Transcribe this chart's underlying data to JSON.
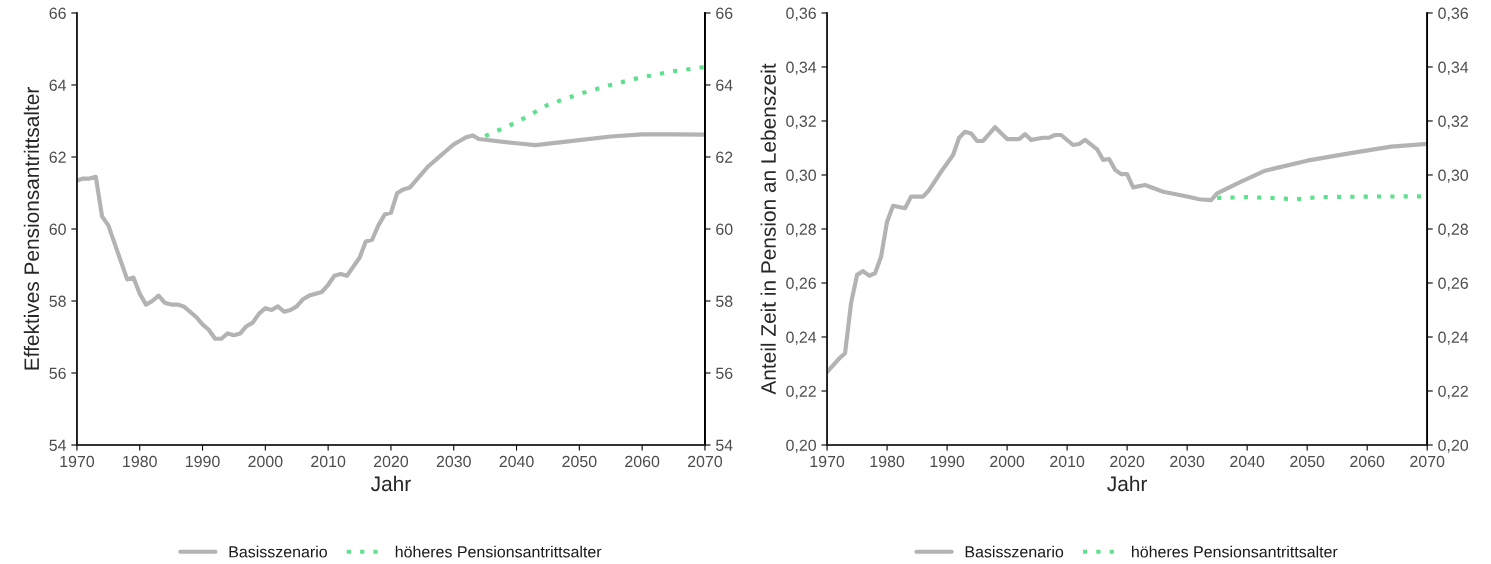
{
  "chart_data": [
    {
      "type": "line",
      "xlabel": "Jahr",
      "ylabel": "Effektives Pensionsantrittsalter",
      "xlim": [
        1970,
        2070
      ],
      "xticks": [
        1970,
        1980,
        1990,
        2000,
        2010,
        2020,
        2030,
        2040,
        2050,
        2060,
        2070
      ],
      "ylim": [
        54,
        66
      ],
      "yticks": [
        54,
        56,
        58,
        60,
        62,
        64,
        66
      ],
      "y2lim": [
        54,
        66
      ],
      "y2ticks": [
        54,
        56,
        58,
        60,
        62,
        64,
        66
      ],
      "grid": false,
      "legend": "bottom",
      "series": [
        {
          "name": "Basisszenario",
          "color": "#b3b3b3",
          "line_style": "solid",
          "x": [
            1970,
            1971,
            1972,
            1973,
            1974,
            1975,
            1976,
            1977,
            1978,
            1979,
            1980,
            1981,
            1982,
            1983,
            1984,
            1985,
            1986,
            1987,
            1988,
            1989,
            1990,
            1991,
            1992,
            1993,
            1994,
            1995,
            1996,
            1997,
            1998,
            1999,
            2000,
            2001,
            2002,
            2003,
            2004,
            2005,
            2006,
            2007,
            2008,
            2009,
            2010,
            2011,
            2012,
            2013,
            2014,
            2015,
            2016,
            2017,
            2018,
            2019,
            2020,
            2021,
            2022,
            2023,
            2024,
            2025,
            2026,
            2027,
            2028,
            2029,
            2030,
            2031,
            2032,
            2033,
            2034,
            2035,
            2040,
            2043,
            2050,
            2055,
            2060,
            2065,
            2070
          ],
          "values": [
            61.35,
            61.4,
            61.4,
            61.45,
            60.35,
            60.1,
            59.6,
            59.1,
            58.6,
            58.65,
            58.2,
            57.9,
            58.0,
            58.15,
            57.95,
            57.9,
            57.9,
            57.85,
            57.7,
            57.55,
            57.35,
            57.2,
            56.95,
            56.95,
            57.1,
            57.05,
            57.1,
            57.3,
            57.4,
            57.65,
            57.8,
            57.75,
            57.85,
            57.7,
            57.75,
            57.85,
            58.05,
            58.15,
            58.2,
            58.25,
            58.45,
            58.7,
            58.75,
            58.7,
            58.95,
            59.2,
            59.65,
            59.7,
            60.1,
            60.4,
            60.45,
            61.0,
            61.1,
            61.15,
            61.35,
            61.55,
            61.75,
            61.9,
            62.05,
            62.2,
            62.35,
            62.45,
            62.55,
            62.6,
            62.5,
            62.48,
            62.38,
            62.33,
            62.47,
            62.57,
            62.63,
            62.63,
            62.62
          ]
        },
        {
          "name": "höheres Pensionsantrittsalter",
          "color": "#5ee08e",
          "line_style": "dotted",
          "x": [
            2035,
            2040,
            2045,
            2050,
            2055,
            2060,
            2065,
            2070
          ],
          "values": [
            62.58,
            62.96,
            63.45,
            63.75,
            64.0,
            64.22,
            64.38,
            64.5
          ]
        }
      ]
    },
    {
      "type": "line",
      "xlabel": "Jahr",
      "ylabel": "Anteil Zeit in Pension an Lebenszeit",
      "xlim": [
        1970,
        2070
      ],
      "xticks": [
        1970,
        1980,
        1990,
        2000,
        2010,
        2020,
        2030,
        2040,
        2050,
        2060,
        2070
      ],
      "ylim": [
        0.2,
        0.36
      ],
      "yticks": [
        {
          "value": 0.2,
          "label": "0,20"
        },
        {
          "value": 0.22,
          "label": "0,22"
        },
        {
          "value": 0.24,
          "label": "0,24"
        },
        {
          "value": 0.26,
          "label": "0,26"
        },
        {
          "value": 0.28,
          "label": "0,28"
        },
        {
          "value": 0.3,
          "label": "0,30"
        },
        {
          "value": 0.32,
          "label": "0,32"
        },
        {
          "value": 0.34,
          "label": "0,34"
        },
        {
          "value": 0.36,
          "label": "0,36"
        }
      ],
      "y2lim": [
        0.2,
        0.36
      ],
      "y2ticks": [
        {
          "value": 0.2,
          "label": "0,20"
        },
        {
          "value": 0.22,
          "label": "0,22"
        },
        {
          "value": 0.24,
          "label": "0,24"
        },
        {
          "value": 0.26,
          "label": "0,26"
        },
        {
          "value": 0.28,
          "label": "0,28"
        },
        {
          "value": 0.3,
          "label": "0,30"
        },
        {
          "value": 0.32,
          "label": "0,32"
        },
        {
          "value": 0.34,
          "label": "0,34"
        },
        {
          "value": 0.36,
          "label": "0,36"
        }
      ],
      "grid": false,
      "legend": "bottom",
      "series": [
        {
          "name": "Basisszenario",
          "color": "#b3b3b3",
          "line_style": "solid",
          "x": [
            1970,
            1972,
            1973,
            1974,
            1975,
            1976,
            1977,
            1978,
            1979,
            1980,
            1981,
            1983,
            1984,
            1986,
            1987,
            1989,
            1991,
            1992,
            1993,
            1994,
            1995,
            1996,
            1998,
            2000,
            2002,
            2003,
            2004,
            2006,
            2007,
            2008,
            2009,
            2011,
            2012,
            2013,
            2015,
            2016,
            2017,
            2018,
            2019,
            2020,
            2021,
            2023,
            2026,
            2030,
            2032,
            2034,
            2035,
            2039,
            2043,
            2050,
            2057,
            2064,
            2070
          ],
          "values": [
            0.227,
            0.232,
            0.234,
            0.2525,
            0.263,
            0.2644,
            0.2627,
            0.2636,
            0.2697,
            0.2827,
            0.2886,
            0.2877,
            0.292,
            0.292,
            0.2944,
            0.3012,
            0.3074,
            0.3138,
            0.316,
            0.3154,
            0.3126,
            0.3126,
            0.3177,
            0.3133,
            0.3133,
            0.3151,
            0.313,
            0.3138,
            0.3138,
            0.3148,
            0.3148,
            0.3111,
            0.3115,
            0.313,
            0.3095,
            0.3056,
            0.3059,
            0.3019,
            0.3003,
            0.3003,
            0.2954,
            0.2963,
            0.2938,
            0.292,
            0.291,
            0.2907,
            0.2932,
            0.2975,
            0.3016,
            0.3053,
            0.308,
            0.3105,
            0.3115
          ]
        },
        {
          "name": "höheres Pensionsantrittsalter",
          "color": "#5ee08e",
          "line_style": "dotted",
          "x": [
            2035,
            2040,
            2045,
            2048,
            2052,
            2060,
            2070
          ],
          "values": [
            0.2915,
            0.2918,
            0.2914,
            0.291,
            0.2918,
            0.292,
            0.2921
          ]
        }
      ]
    }
  ]
}
